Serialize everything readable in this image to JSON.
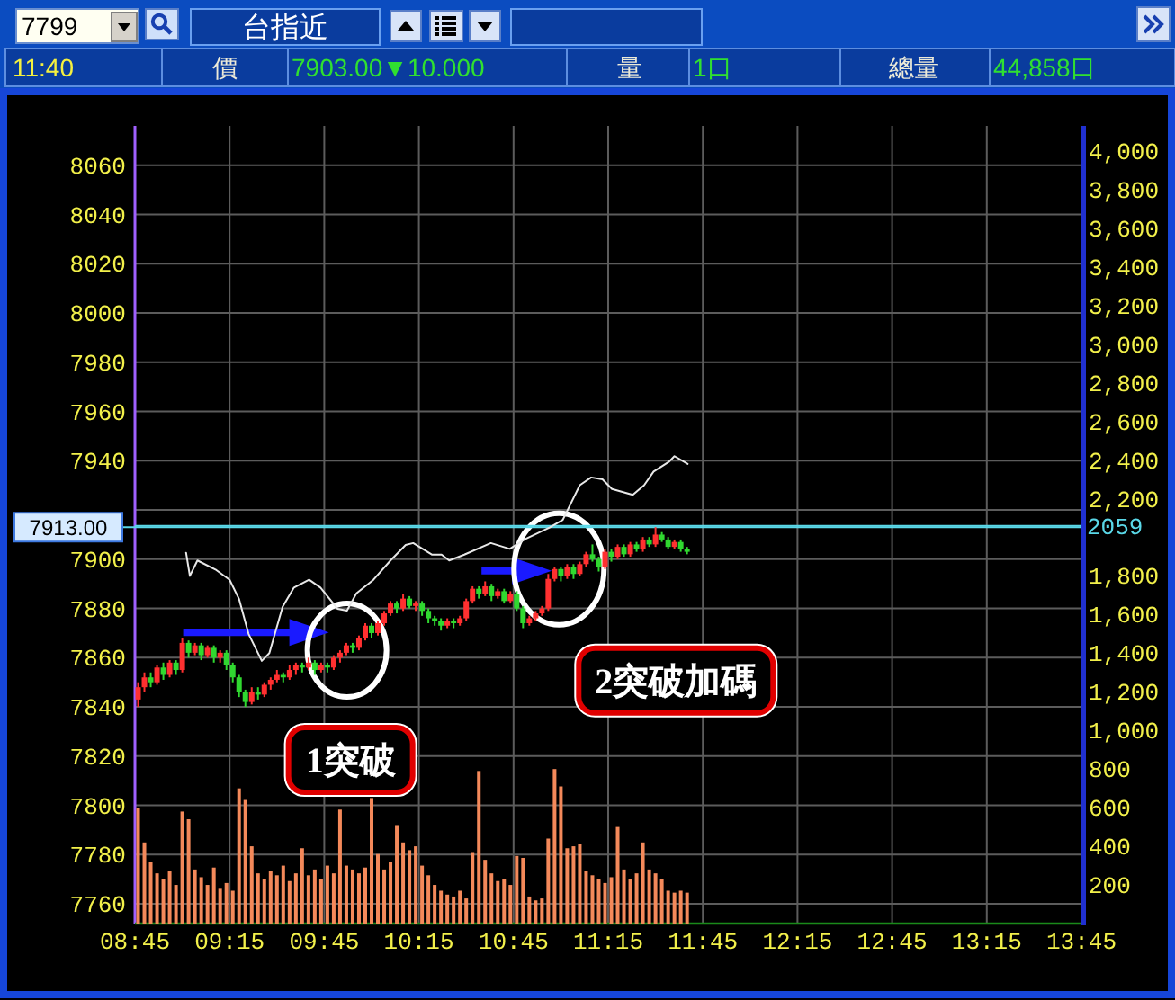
{
  "chart_data": {
    "type": "candlestick",
    "title": "台指近",
    "annotations": [
      "7799",
      "11:40",
      "價",
      "7903.00▼10.000",
      "量",
      "1口",
      "總量",
      "44,858口",
      {
        "text": "1突破",
        "x": 9.87,
        "y": 7863
      },
      {
        "text": "2突破加碼",
        "x": 10.99,
        "y": 7896
      }
    ],
    "x": [
      8.7667,
      8.8,
      8.8333,
      8.8667,
      8.9,
      8.9333,
      8.9667,
      9.0,
      9.0333,
      9.0667,
      9.1,
      9.1333,
      9.1667,
      9.2,
      9.2333,
      9.2667,
      9.3,
      9.3333,
      9.3667,
      9.4,
      9.4333,
      9.4667,
      9.5,
      9.5333,
      9.5667,
      9.6,
      9.6333,
      9.6667,
      9.7,
      9.7333,
      9.7667,
      9.8,
      9.8333,
      9.8667,
      9.9,
      9.9333,
      9.9667,
      10.0,
      10.0333,
      10.0667,
      10.1,
      10.1333,
      10.1667,
      10.2,
      10.2333,
      10.2667,
      10.3,
      10.3333,
      10.3667,
      10.4,
      10.4333,
      10.4667,
      10.5,
      10.5333,
      10.5667,
      10.6,
      10.6333,
      10.6667,
      10.7,
      10.7333,
      10.7667,
      10.8,
      10.8333,
      10.8667,
      10.9,
      10.9333,
      10.9667,
      11.0,
      11.0333,
      11.0667,
      11.1,
      11.1333,
      11.1667,
      11.2,
      11.2333,
      11.2667,
      11.3,
      11.3333,
      11.3667,
      11.4,
      11.4333,
      11.4667,
      11.5,
      11.5333,
      11.5667,
      11.6,
      11.6333,
      11.6667
    ],
    "ohlc": [
      [
        7843,
        7850,
        7840,
        7848
      ],
      [
        7848,
        7854,
        7846,
        7852
      ],
      [
        7852,
        7854,
        7848,
        7850
      ],
      [
        7850,
        7857,
        7849,
        7856
      ],
      [
        7856,
        7858,
        7851,
        7853
      ],
      [
        7853,
        7859,
        7852,
        7858
      ],
      [
        7858,
        7859,
        7853,
        7855
      ],
      [
        7855,
        7868,
        7854,
        7866
      ],
      [
        7866,
        7867,
        7860,
        7862
      ],
      [
        7862,
        7866,
        7861,
        7865
      ],
      [
        7865,
        7866,
        7859,
        7861
      ],
      [
        7861,
        7865,
        7860,
        7864
      ],
      [
        7864,
        7865,
        7858,
        7860
      ],
      [
        7860,
        7863,
        7858,
        7862
      ],
      [
        7862,
        7863,
        7855,
        7857
      ],
      [
        7857,
        7858,
        7850,
        7852
      ],
      [
        7852,
        7853,
        7844,
        7846
      ],
      [
        7846,
        7847,
        7840,
        7842
      ],
      [
        7842,
        7848,
        7841,
        7846
      ],
      [
        7846,
        7848,
        7843,
        7845
      ],
      [
        7845,
        7850,
        7844,
        7849
      ],
      [
        7849,
        7852,
        7847,
        7851
      ],
      [
        7851,
        7855,
        7850,
        7853
      ],
      [
        7853,
        7854,
        7850,
        7852
      ],
      [
        7852,
        7857,
        7851,
        7855
      ],
      [
        7855,
        7858,
        7853,
        7857
      ],
      [
        7857,
        7858,
        7854,
        7856
      ],
      [
        7856,
        7860,
        7855,
        7858
      ],
      [
        7858,
        7859,
        7853,
        7855
      ],
      [
        7855,
        7858,
        7854,
        7857
      ],
      [
        7857,
        7858,
        7854,
        7856
      ],
      [
        7856,
        7861,
        7855,
        7860
      ],
      [
        7860,
        7863,
        7858,
        7862
      ],
      [
        7862,
        7866,
        7861,
        7865
      ],
      [
        7865,
        7866,
        7862,
        7864
      ],
      [
        7864,
        7869,
        7863,
        7868
      ],
      [
        7868,
        7874,
        7867,
        7873
      ],
      [
        7873,
        7874,
        7868,
        7870
      ],
      [
        7870,
        7875,
        7869,
        7874
      ],
      [
        7874,
        7879,
        7873,
        7878
      ],
      [
        7878,
        7883,
        7877,
        7882
      ],
      [
        7882,
        7883,
        7878,
        7880
      ],
      [
        7880,
        7886,
        7879,
        7884
      ],
      [
        7884,
        7885,
        7880,
        7881
      ],
      [
        7881,
        7883,
        7879,
        7882
      ],
      [
        7882,
        7883,
        7877,
        7879
      ],
      [
        7879,
        7880,
        7874,
        7876
      ],
      [
        7876,
        7877,
        7873,
        7875
      ],
      [
        7875,
        7876,
        7871,
        7873
      ],
      [
        7873,
        7876,
        7872,
        7875
      ],
      [
        7875,
        7876,
        7872,
        7874
      ],
      [
        7874,
        7877,
        7873,
        7876
      ],
      [
        7876,
        7884,
        7875,
        7883
      ],
      [
        7883,
        7889,
        7882,
        7888
      ],
      [
        7888,
        7889,
        7884,
        7886
      ],
      [
        7886,
        7891,
        7885,
        7889
      ],
      [
        7889,
        7890,
        7883,
        7885
      ],
      [
        7885,
        7888,
        7884,
        7887
      ],
      [
        7887,
        7888,
        7882,
        7883
      ],
      [
        7883,
        7887,
        7882,
        7886
      ],
      [
        7886,
        7887,
        7879,
        7880
      ],
      [
        7880,
        7881,
        7872,
        7874
      ],
      [
        7874,
        7877,
        7873,
        7876
      ],
      [
        7876,
        7879,
        7875,
        7878
      ],
      [
        7878,
        7881,
        7877,
        7880
      ],
      [
        7880,
        7894,
        7879,
        7892
      ],
      [
        7892,
        7897,
        7891,
        7896
      ],
      [
        7896,
        7897,
        7891,
        7893
      ],
      [
        7893,
        7898,
        7892,
        7897
      ],
      [
        7897,
        7898,
        7892,
        7894
      ],
      [
        7894,
        7899,
        7893,
        7898
      ],
      [
        7898,
        7903,
        7897,
        7902
      ],
      [
        7902,
        7906,
        7899,
        7900
      ],
      [
        7900,
        7901,
        7895,
        7897
      ],
      [
        7897,
        7904,
        7896,
        7903
      ],
      [
        7903,
        7904,
        7899,
        7901
      ],
      [
        7901,
        7906,
        7900,
        7905
      ],
      [
        7905,
        7906,
        7901,
        7902
      ],
      [
        7902,
        7907,
        7901,
        7906
      ],
      [
        7906,
        7907,
        7903,
        7904
      ],
      [
        7904,
        7909,
        7903,
        7908
      ],
      [
        7908,
        7909,
        7905,
        7906
      ],
      [
        7906,
        7913,
        7905,
        7910
      ],
      [
        7910,
        7911,
        7907,
        7908
      ],
      [
        7908,
        7909,
        7904,
        7905
      ],
      [
        7905,
        7908,
        7904,
        7907
      ],
      [
        7907,
        7908,
        7903,
        7904
      ],
      [
        7904,
        7905,
        7902,
        7903
      ]
    ],
    "colors": [
      "#ff3030",
      "#ff3030",
      "#30d830",
      "#ff3030",
      "#30d830",
      "#ff3030",
      "#30d830",
      "#ff3030",
      "#30d830",
      "#ff3030",
      "#30d830",
      "#ff3030",
      "#30d830",
      "#ff3030",
      "#30d830",
      "#30d830",
      "#30d830",
      "#30d830",
      "#ff3030",
      "#30d830",
      "#ff3030",
      "#ff3030",
      "#ff3030",
      "#30d830",
      "#ff3030",
      "#ff3030",
      "#30d830",
      "#ff3030",
      "#30d830",
      "#ff3030",
      "#30d830",
      "#ff3030",
      "#ff3030",
      "#ff3030",
      "#30d830",
      "#ff3030",
      "#ff3030",
      "#30d830",
      "#ff3030",
      "#ff3030",
      "#ff3030",
      "#30d830",
      "#ff3030",
      "#30d830",
      "#ff3030",
      "#30d830",
      "#30d830",
      "#30d830",
      "#30d830",
      "#ff3030",
      "#30d830",
      "#ff3030",
      "#ff3030",
      "#ff3030",
      "#30d830",
      "#ff3030",
      "#30d830",
      "#ff3030",
      "#30d830",
      "#ff3030",
      "#30d830",
      "#30d830",
      "#ff3030",
      "#ff3030",
      "#ff3030",
      "#ff3030",
      "#ff3030",
      "#30d830",
      "#ff3030",
      "#30d830",
      "#ff3030",
      "#ff3030",
      "#30d830",
      "#30d830",
      "#ff3030",
      "#30d830",
      "#ff3030",
      "#30d830",
      "#ff3030",
      "#30d830",
      "#ff3030",
      "#30d830",
      "#ff3030",
      "#30d830",
      "#30d830",
      "#ff3030",
      "#30d830",
      "#30d830"
    ],
    "series": [
      {
        "type": "bar",
        "axis": "y2",
        "color": "#f4895a",
        "values": [
          600,
          420,
          320,
          260,
          230,
          270,
          200,
          580,
          540,
          280,
          240,
          200,
          290,
          180,
          210,
          170,
          700,
          640,
          400,
          260,
          230,
          270,
          250,
          300,
          220,
          260,
          390,
          250,
          280,
          230,
          300,
          260,
          590,
          300,
          280,
          260,
          290,
          650,
          360,
          280,
          320,
          510,
          420,
          380,
          400,
          300,
          250,
          200,
          170,
          150,
          140,
          170,
          130,
          370,
          790,
          330,
          260,
          220,
          230,
          200,
          350,
          340,
          140,
          120,
          130,
          440,
          800,
          710,
          390,
          400,
          410,
          270,
          250,
          230,
          210,
          240,
          500,
          280,
          230,
          260,
          420,
          280,
          260,
          230,
          170,
          160,
          170,
          160
        ]
      },
      {
        "type": "line",
        "axis": "y2",
        "color": "#e8e8e8",
        "x": [
          9.02,
          9.04,
          9.08,
          9.18,
          9.25,
          9.3,
          9.35,
          9.42,
          9.46,
          9.53,
          9.59,
          9.67,
          9.73,
          9.82,
          9.87,
          9.92,
          10.01,
          10.1,
          10.18,
          10.22,
          10.32,
          10.37,
          10.41,
          10.49,
          10.63,
          10.73,
          10.81,
          10.94,
          11.01,
          11.1,
          11.16,
          11.22,
          11.27,
          11.38,
          11.44,
          11.49,
          11.57,
          11.6,
          11.67
        ],
        "values": [
          1920,
          1800,
          1880,
          1830,
          1780,
          1680,
          1500,
          1360,
          1400,
          1640,
          1740,
          1780,
          1740,
          1630,
          1620,
          1710,
          1780,
          1880,
          1960,
          1970,
          1910,
          1910,
          1880,
          1910,
          1970,
          1940,
          1990,
          2050,
          2090,
          2270,
          2310,
          2300,
          2250,
          2220,
          2270,
          2340,
          2390,
          2420,
          2380
        ]
      }
    ],
    "xlim": [
      8.75,
      13.75
    ],
    "xticks": [
      {
        "value": 8.75,
        "label": "08:45"
      },
      {
        "value": 9.25,
        "label": "09:15"
      },
      {
        "value": 9.75,
        "label": "09:45"
      },
      {
        "value": 10.25,
        "label": "10:15"
      },
      {
        "value": 10.75,
        "label": "10:45"
      },
      {
        "value": 11.25,
        "label": "11:15"
      },
      {
        "value": 11.75,
        "label": "11:45"
      },
      {
        "value": 12.25,
        "label": "12:15"
      },
      {
        "value": 12.75,
        "label": "12:45"
      },
      {
        "value": 13.25,
        "label": "13:15"
      },
      {
        "value": 13.75,
        "label": "13:45"
      }
    ],
    "ylim": [
      7752,
      8076
    ],
    "yticks": [
      7760,
      7780,
      7800,
      7820,
      7840,
      7860,
      7880,
      7900,
      {
        "value": 7920,
        "label": null
      },
      7940,
      7960,
      7980,
      8000,
      8020,
      8040,
      8060
    ],
    "y2lim": [
      0,
      4130
    ],
    "y2ticks": [
      200,
      400,
      600,
      800,
      {
        "value": 1000,
        "label": "1,000"
      },
      {
        "value": 1200,
        "label": "1,200"
      },
      {
        "value": 1400,
        "label": "1,400"
      },
      {
        "value": 1600,
        "label": "1,600"
      },
      {
        "value": 1800,
        "label": "1,800"
      },
      {
        "value": 2200,
        "label": "2,200"
      },
      {
        "value": 2400,
        "label": "2,400"
      },
      {
        "value": 2600,
        "label": "2,600"
      },
      {
        "value": 2800,
        "label": "2,800"
      },
      {
        "value": 3000,
        "label": "3,000"
      },
      {
        "value": 3200,
        "label": "3,200"
      },
      {
        "value": 3400,
        "label": "3,400"
      },
      {
        "value": 3600,
        "label": "3,600"
      },
      {
        "value": 3800,
        "label": "3,800"
      },
      {
        "value": 4000,
        "label": "4,000"
      }
    ],
    "grid": true,
    "ref_lines": [
      {
        "axis": "y",
        "value": 7913,
        "label": "7913.00",
        "color": "#5ad8e8"
      },
      {
        "axis": "y2",
        "value": 2059,
        "label": "2059",
        "color": "#5ad8e8"
      }
    ]
  }
}
